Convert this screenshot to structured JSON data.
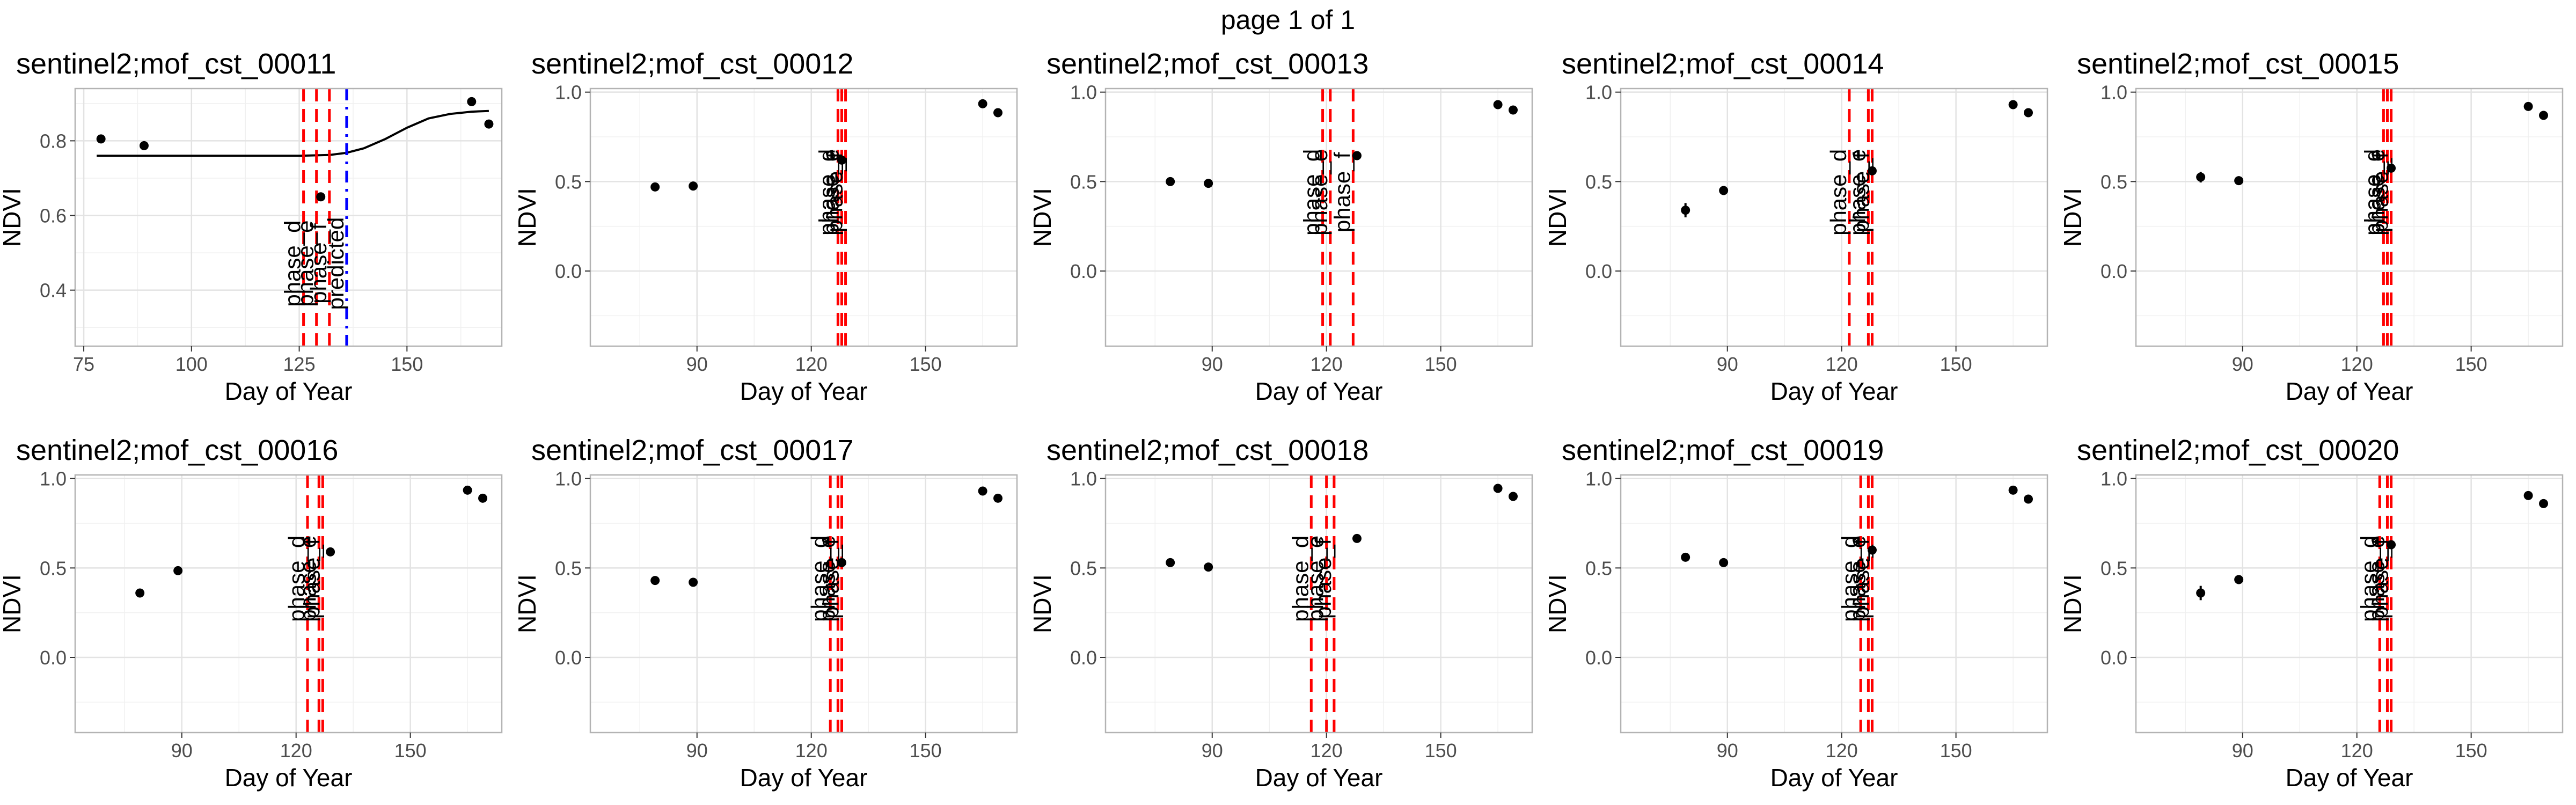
{
  "page_title": "page 1 of 1",
  "chart_data": [
    {
      "type": "scatter",
      "title": "sentinel2;mof_cst_00011",
      "xlabel": "Day of Year",
      "ylabel": "NDVI",
      "xlim": [
        73,
        172
      ],
      "ylim": [
        0.25,
        0.94
      ],
      "xticks": [
        75,
        100,
        125,
        150
      ],
      "yticks": [
        0.4,
        0.6,
        0.8
      ],
      "grid": true,
      "points": [
        {
          "x": 79,
          "y": 0.805
        },
        {
          "x": 89,
          "y": 0.787
        },
        {
          "x": 130,
          "y": 0.65
        },
        {
          "x": 165,
          "y": 0.905
        },
        {
          "x": 169,
          "y": 0.845
        }
      ],
      "fit_curve": {
        "color": "#000000",
        "x": [
          78,
          100,
          125,
          132,
          136,
          140,
          145,
          150,
          155,
          160,
          165,
          169
        ],
        "y": [
          0.76,
          0.76,
          0.76,
          0.762,
          0.768,
          0.78,
          0.805,
          0.835,
          0.86,
          0.872,
          0.878,
          0.88
        ]
      },
      "vlines": [
        {
          "x": 126,
          "label": "phase_d",
          "color": "#ff0000",
          "style": "dashed"
        },
        {
          "x": 129,
          "label": "phase_e",
          "color": "#ff0000",
          "style": "dashed"
        },
        {
          "x": 132,
          "label": "phase_f",
          "color": "#ff0000",
          "style": "dashed"
        },
        {
          "x": 136,
          "label": "predicted",
          "color": "#0000ff",
          "style": "dashdot"
        }
      ]
    },
    {
      "type": "scatter",
      "title": "sentinel2;mof_cst_00012",
      "xlabel": "Day of Year",
      "ylabel": "NDVI",
      "xlim": [
        62,
        174
      ],
      "ylim": [
        -0.42,
        1.02
      ],
      "xticks": [
        90,
        120,
        150
      ],
      "yticks": [
        0.0,
        0.5,
        1.0
      ],
      "grid": true,
      "points": [
        {
          "x": 79,
          "y": 0.47
        },
        {
          "x": 89,
          "y": 0.475
        },
        {
          "x": 128,
          "y": 0.62
        },
        {
          "x": 165,
          "y": 0.935
        },
        {
          "x": 169,
          "y": 0.885
        }
      ],
      "vlines": [
        {
          "x": 127,
          "label": "phase_d",
          "color": "#ff0000",
          "style": "dashed"
        },
        {
          "x": 128,
          "label": "phase_e",
          "color": "#ff0000",
          "style": "dashed"
        },
        {
          "x": 129,
          "label": "phase_f",
          "color": "#ff0000",
          "style": "dashed"
        }
      ]
    },
    {
      "type": "scatter",
      "title": "sentinel2;mof_cst_00013",
      "xlabel": "Day of Year",
      "ylabel": "NDVI",
      "xlim": [
        62,
        174
      ],
      "ylim": [
        -0.42,
        1.02
      ],
      "xticks": [
        90,
        120,
        150
      ],
      "yticks": [
        0.0,
        0.5,
        1.0
      ],
      "grid": true,
      "points": [
        {
          "x": 79,
          "y": 0.5
        },
        {
          "x": 89,
          "y": 0.49
        },
        {
          "x": 128,
          "y": 0.645
        },
        {
          "x": 165,
          "y": 0.93
        },
        {
          "x": 169,
          "y": 0.9
        }
      ],
      "vlines": [
        {
          "x": 119,
          "label": "phase_d",
          "color": "#ff0000",
          "style": "dashed"
        },
        {
          "x": 121,
          "label": "phase_e",
          "color": "#ff0000",
          "style": "dashed"
        },
        {
          "x": 127,
          "label": "phase_f",
          "color": "#ff0000",
          "style": "dashed"
        }
      ]
    },
    {
      "type": "scatter",
      "title": "sentinel2;mof_cst_00014",
      "xlabel": "Day of Year",
      "ylabel": "NDVI",
      "xlim": [
        62,
        174
      ],
      "ylim": [
        -0.42,
        1.02
      ],
      "xticks": [
        90,
        120,
        150
      ],
      "yticks": [
        0.0,
        0.5,
        1.0
      ],
      "grid": true,
      "points": [
        {
          "x": 79,
          "y": 0.34,
          "err": 0.04
        },
        {
          "x": 89,
          "y": 0.45
        },
        {
          "x": 128,
          "y": 0.56
        },
        {
          "x": 165,
          "y": 0.93
        },
        {
          "x": 169,
          "y": 0.885
        }
      ],
      "vlines": [
        {
          "x": 122,
          "label": "phase_d",
          "color": "#ff0000",
          "style": "dashed"
        },
        {
          "x": 127,
          "label": "phase_e",
          "color": "#ff0000",
          "style": "dashed"
        },
        {
          "x": 128,
          "label": "phase_f",
          "color": "#ff0000",
          "style": "dashed"
        }
      ]
    },
    {
      "type": "scatter",
      "title": "sentinel2;mof_cst_00015",
      "xlabel": "Day of Year",
      "ylabel": "NDVI",
      "xlim": [
        62,
        174
      ],
      "ylim": [
        -0.42,
        1.02
      ],
      "xticks": [
        90,
        120,
        150
      ],
      "yticks": [
        0.0,
        0.5,
        1.0
      ],
      "grid": true,
      "points": [
        {
          "x": 79,
          "y": 0.525,
          "err": 0.03
        },
        {
          "x": 89,
          "y": 0.505,
          "err": 0.02
        },
        {
          "x": 129,
          "y": 0.575
        },
        {
          "x": 165,
          "y": 0.92
        },
        {
          "x": 169,
          "y": 0.87
        }
      ],
      "vlines": [
        {
          "x": 127,
          "label": "phase_d",
          "color": "#ff0000",
          "style": "dashed"
        },
        {
          "x": 128,
          "label": "phase_e",
          "color": "#ff0000",
          "style": "dashed"
        },
        {
          "x": 129,
          "label": "phase_f",
          "color": "#ff0000",
          "style": "dashed"
        }
      ]
    },
    {
      "type": "scatter",
      "title": "sentinel2;mof_cst_00016",
      "xlabel": "Day of Year",
      "ylabel": "NDVI",
      "xlim": [
        62,
        174
      ],
      "ylim": [
        -0.42,
        1.02
      ],
      "xticks": [
        90,
        120,
        150
      ],
      "yticks": [
        0.0,
        0.5,
        1.0
      ],
      "grid": true,
      "points": [
        {
          "x": 79,
          "y": 0.36
        },
        {
          "x": 89,
          "y": 0.485
        },
        {
          "x": 129,
          "y": 0.59
        },
        {
          "x": 165,
          "y": 0.935
        },
        {
          "x": 169,
          "y": 0.89
        }
      ],
      "vlines": [
        {
          "x": 123,
          "label": "phase_d",
          "color": "#ff0000",
          "style": "dashed"
        },
        {
          "x": 126,
          "label": "phase_e",
          "color": "#ff0000",
          "style": "dashed"
        },
        {
          "x": 127,
          "label": "phase_f",
          "color": "#ff0000",
          "style": "dashed"
        }
      ]
    },
    {
      "type": "scatter",
      "title": "sentinel2;mof_cst_00017",
      "xlabel": "Day of Year",
      "ylabel": "NDVI",
      "xlim": [
        62,
        174
      ],
      "ylim": [
        -0.42,
        1.02
      ],
      "xticks": [
        90,
        120,
        150
      ],
      "yticks": [
        0.0,
        0.5,
        1.0
      ],
      "grid": true,
      "points": [
        {
          "x": 79,
          "y": 0.43
        },
        {
          "x": 89,
          "y": 0.42
        },
        {
          "x": 128,
          "y": 0.53
        },
        {
          "x": 165,
          "y": 0.93
        },
        {
          "x": 169,
          "y": 0.89
        }
      ],
      "vlines": [
        {
          "x": 125,
          "label": "phase_d",
          "color": "#ff0000",
          "style": "dashed"
        },
        {
          "x": 127,
          "label": "phase_e",
          "color": "#ff0000",
          "style": "dashed"
        },
        {
          "x": 128,
          "label": "phase_f",
          "color": "#ff0000",
          "style": "dashed"
        }
      ]
    },
    {
      "type": "scatter",
      "title": "sentinel2;mof_cst_00018",
      "xlabel": "Day of Year",
      "ylabel": "NDVI",
      "xlim": [
        62,
        174
      ],
      "ylim": [
        -0.42,
        1.02
      ],
      "xticks": [
        90,
        120,
        150
      ],
      "yticks": [
        0.0,
        0.5,
        1.0
      ],
      "grid": true,
      "points": [
        {
          "x": 79,
          "y": 0.53
        },
        {
          "x": 89,
          "y": 0.505
        },
        {
          "x": 128,
          "y": 0.665
        },
        {
          "x": 165,
          "y": 0.945
        },
        {
          "x": 169,
          "y": 0.9
        }
      ],
      "vlines": [
        {
          "x": 116,
          "label": "phase_d",
          "color": "#ff0000",
          "style": "dashed"
        },
        {
          "x": 120,
          "label": "phase_e",
          "color": "#ff0000",
          "style": "dashed"
        },
        {
          "x": 122,
          "label": "phase_f",
          "color": "#ff0000",
          "style": "dashed"
        }
      ]
    },
    {
      "type": "scatter",
      "title": "sentinel2;mof_cst_00019",
      "xlabel": "Day of Year",
      "ylabel": "NDVI",
      "xlim": [
        62,
        174
      ],
      "ylim": [
        -0.42,
        1.02
      ],
      "xticks": [
        90,
        120,
        150
      ],
      "yticks": [
        0.0,
        0.5,
        1.0
      ],
      "grid": true,
      "points": [
        {
          "x": 79,
          "y": 0.56
        },
        {
          "x": 89,
          "y": 0.53
        },
        {
          "x": 128,
          "y": 0.6
        },
        {
          "x": 165,
          "y": 0.935
        },
        {
          "x": 169,
          "y": 0.885
        }
      ],
      "vlines": [
        {
          "x": 125,
          "label": "phase_d",
          "color": "#ff0000",
          "style": "dashed"
        },
        {
          "x": 127,
          "label": "phase_e",
          "color": "#ff0000",
          "style": "dashed"
        },
        {
          "x": 128,
          "label": "phase_f",
          "color": "#ff0000",
          "style": "dashed"
        }
      ]
    },
    {
      "type": "scatter",
      "title": "sentinel2;mof_cst_00020",
      "xlabel": "Day of Year",
      "ylabel": "NDVI",
      "xlim": [
        62,
        174
      ],
      "ylim": [
        -0.42,
        1.02
      ],
      "xticks": [
        90,
        120,
        150
      ],
      "yticks": [
        0.0,
        0.5,
        1.0
      ],
      "grid": true,
      "points": [
        {
          "x": 79,
          "y": 0.36,
          "err": 0.04
        },
        {
          "x": 89,
          "y": 0.435
        },
        {
          "x": 129,
          "y": 0.63
        },
        {
          "x": 165,
          "y": 0.905
        },
        {
          "x": 169,
          "y": 0.86
        }
      ],
      "vlines": [
        {
          "x": 126,
          "label": "phase_d",
          "color": "#ff0000",
          "style": "dashed"
        },
        {
          "x": 128,
          "label": "phase_e",
          "color": "#ff0000",
          "style": "dashed"
        },
        {
          "x": 129,
          "label": "phase_f",
          "color": "#ff0000",
          "style": "dashed"
        }
      ]
    }
  ]
}
